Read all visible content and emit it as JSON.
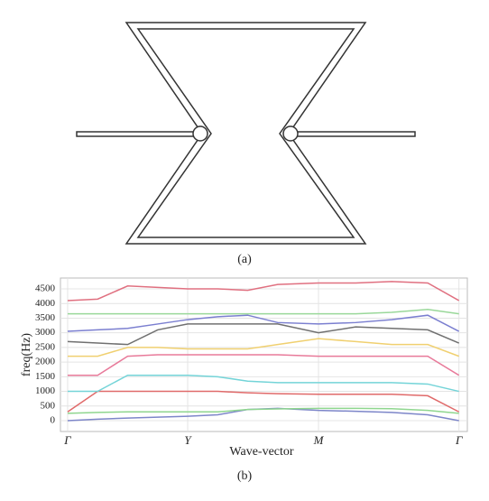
{
  "diagram": {
    "caption": "(a)"
  },
  "chart_data": {
    "type": "line",
    "caption": "(b)",
    "x_label": "Wave-vector",
    "y_label": "freq(Hz)",
    "x": [
      0,
      0.25,
      0.5,
      0.75,
      1,
      1.25,
      1.5,
      1.75,
      2.09,
      2.4,
      2.7,
      3.0,
      3.26
    ],
    "xlim": [
      -0.06,
      3.33
    ],
    "xticks": [
      {
        "value": 0,
        "label": "Γ"
      },
      {
        "value": 1,
        "label": "Y"
      },
      {
        "value": 2.09,
        "label": "M"
      },
      {
        "value": 3.26,
        "label": "Γ"
      }
    ],
    "ylim": [
      -370,
      4870
    ],
    "yticks": [
      0,
      500,
      1000,
      1500,
      2000,
      2500,
      3000,
      3500,
      4000,
      4500
    ],
    "grid": true,
    "series": [
      {
        "color": "#7d86c9",
        "values": [
          0,
          50,
          90,
          120,
          150,
          200,
          380,
          420,
          350,
          320,
          280,
          200,
          0
        ]
      },
      {
        "color": "#8fd68f",
        "values": [
          250,
          280,
          300,
          300,
          300,
          300,
          380,
          400,
          420,
          420,
          410,
          350,
          250
        ]
      },
      {
        "color": "#e06a6a",
        "values": [
          300,
          1000,
          1000,
          1000,
          1000,
          1000,
          950,
          920,
          900,
          900,
          900,
          850,
          300
        ]
      },
      {
        "color": "#74d4d8",
        "values": [
          1000,
          1000,
          1550,
          1550,
          1550,
          1500,
          1350,
          1300,
          1300,
          1300,
          1300,
          1250,
          1000
        ]
      },
      {
        "color": "#e87a9a",
        "values": [
          1550,
          1550,
          2200,
          2250,
          2250,
          2250,
          2250,
          2250,
          2200,
          2200,
          2200,
          2200,
          1550
        ]
      },
      {
        "color": "#f0d070",
        "values": [
          2200,
          2200,
          2500,
          2500,
          2450,
          2450,
          2450,
          2600,
          2800,
          2700,
          2600,
          2600,
          2200
        ]
      },
      {
        "color": "#707070",
        "values": [
          2700,
          2650,
          2600,
          3100,
          3300,
          3300,
          3300,
          3300,
          3000,
          3200,
          3150,
          3100,
          2650
        ]
      },
      {
        "color": "#7b7fd0",
        "values": [
          3050,
          3100,
          3150,
          3300,
          3450,
          3550,
          3600,
          3350,
          3300,
          3350,
          3450,
          3600,
          3050
        ]
      },
      {
        "color": "#9ad89a",
        "values": [
          3650,
          3650,
          3650,
          3650,
          3650,
          3650,
          3650,
          3650,
          3650,
          3650,
          3700,
          3800,
          3650
        ]
      },
      {
        "color": "#e07080",
        "values": [
          4100,
          4150,
          4600,
          4550,
          4500,
          4500,
          4450,
          4650,
          4700,
          4700,
          4750,
          4700,
          4100
        ]
      }
    ]
  }
}
